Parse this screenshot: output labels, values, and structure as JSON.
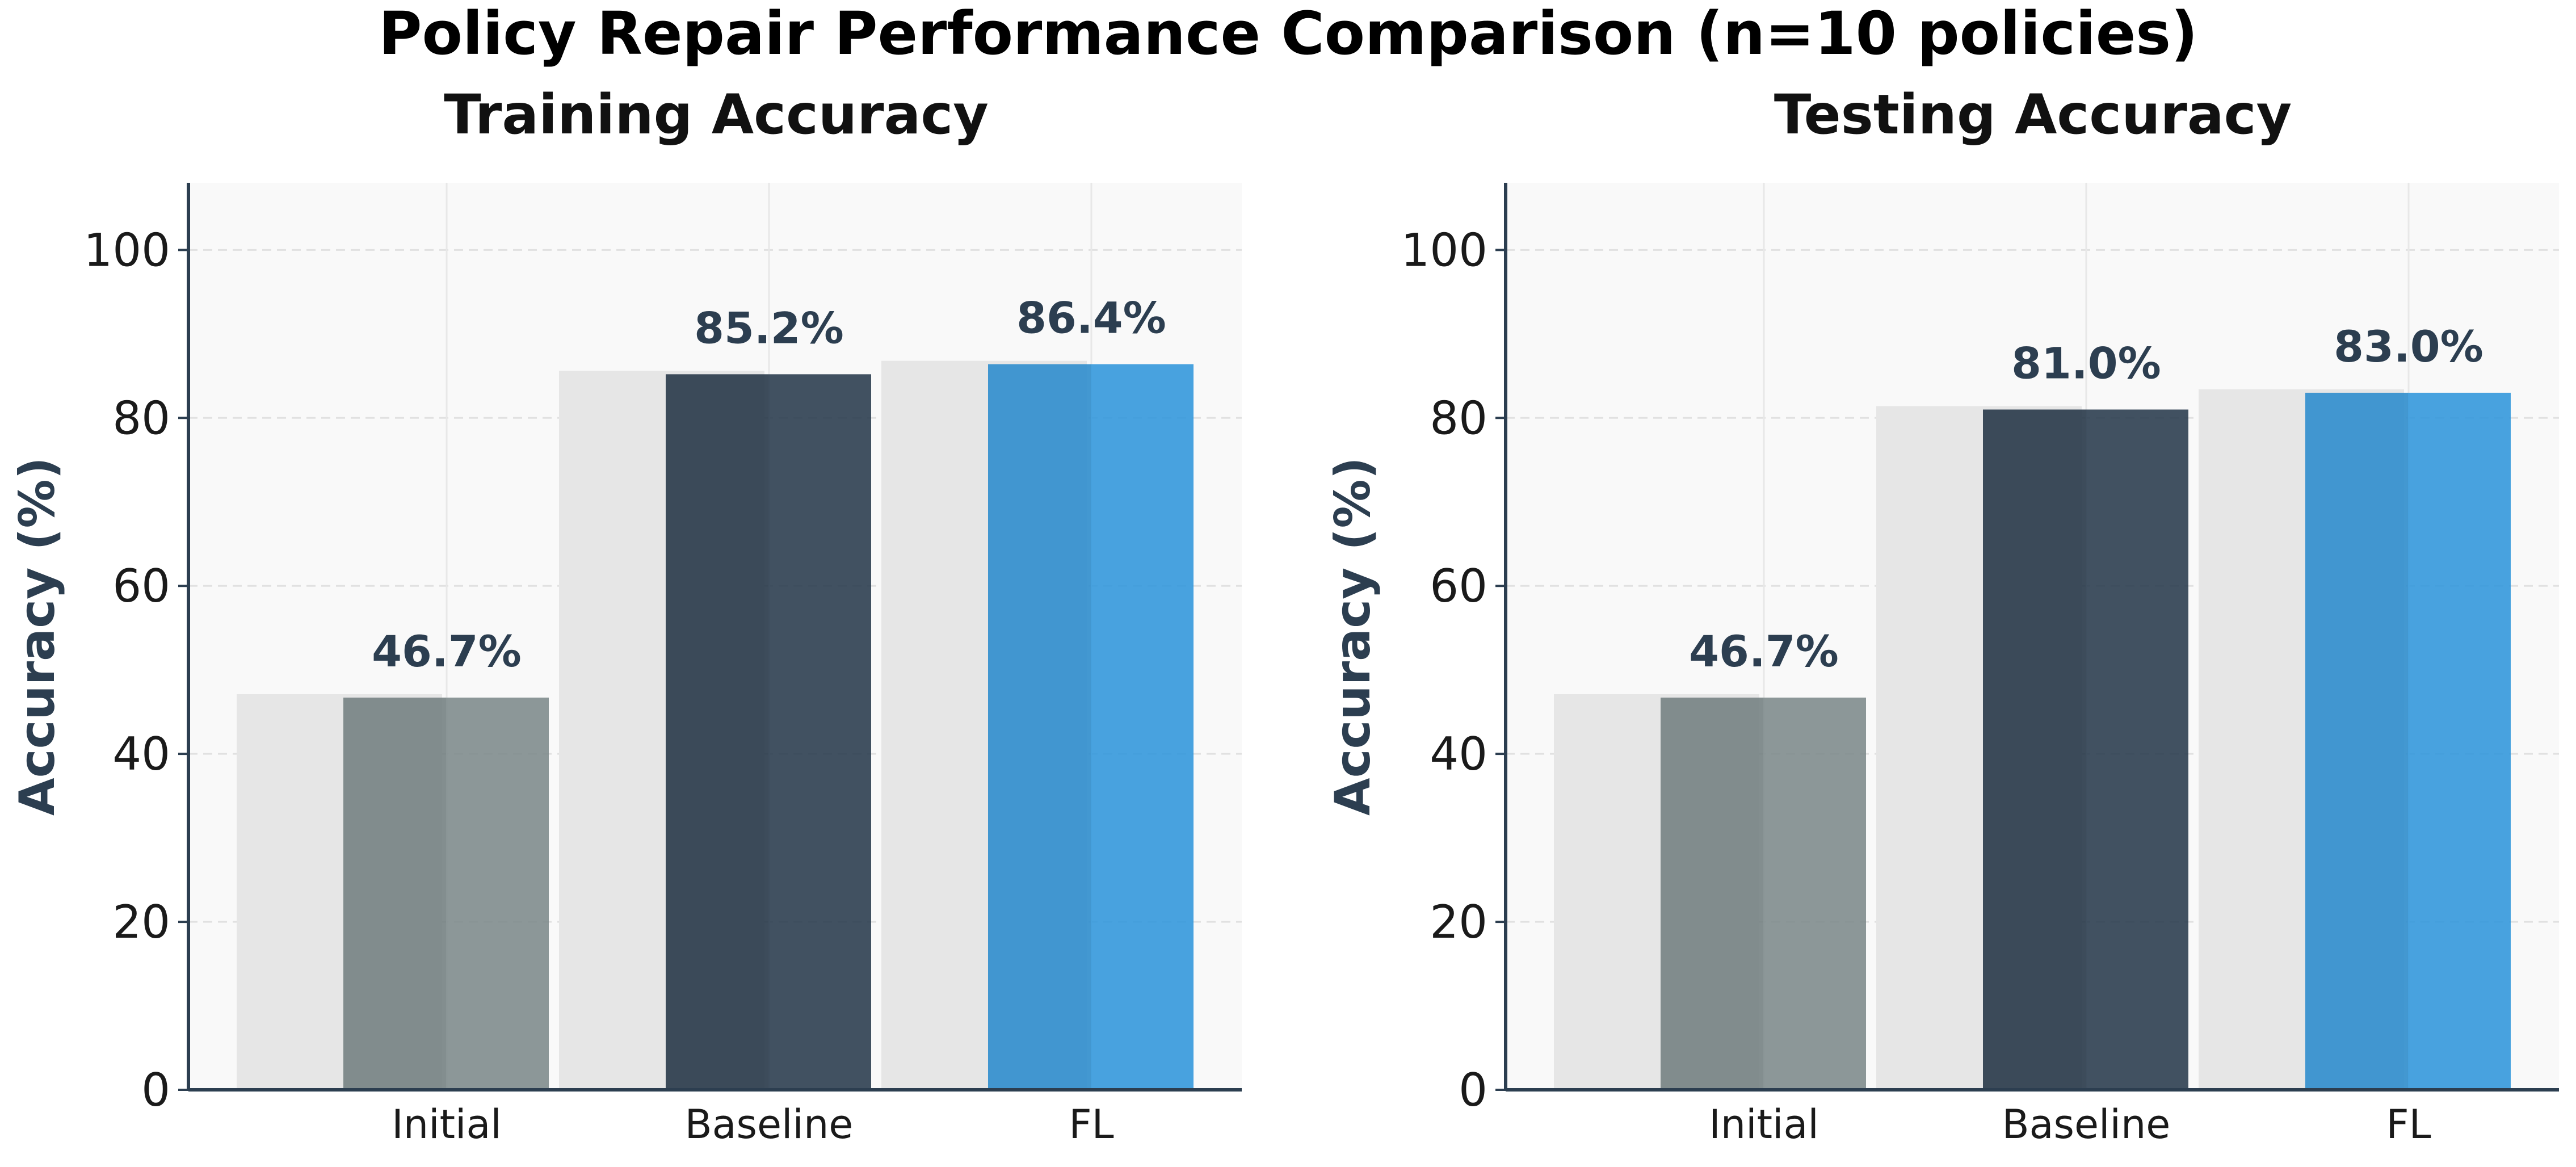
{
  "figure_title": "Policy Repair Performance Comparison (n=10 policies)",
  "colors": {
    "initial": "#7f8c8d",
    "baseline": "#2c3e50",
    "fl": "#3498db",
    "shadow_bar": "#e6e6e6",
    "plot_bg": "#f9f9f9",
    "label_text": "#2c3e50",
    "axis": "#2c3e50",
    "grid": "#dcdcdc"
  },
  "chart_data": [
    {
      "type": "bar",
      "title": "Training Accuracy",
      "ylabel": "Accuracy (%)",
      "xlabel": "",
      "ylim": [
        0,
        108
      ],
      "yticks": [
        "0",
        "20",
        "40",
        "60",
        "80",
        "100"
      ],
      "grid": true,
      "categories": [
        "Initial",
        "Baseline",
        "FL"
      ],
      "values": [
        46.7,
        85.2,
        86.4
      ],
      "value_labels": [
        "46.7%",
        "85.2%",
        "86.4%"
      ]
    },
    {
      "type": "bar",
      "title": "Testing Accuracy",
      "ylabel": "Accuracy (%)",
      "xlabel": "",
      "ylim": [
        0,
        108
      ],
      "yticks": [
        "0",
        "20",
        "40",
        "60",
        "80",
        "100"
      ],
      "grid": true,
      "categories": [
        "Initial",
        "Baseline",
        "FL"
      ],
      "values": [
        46.7,
        81.0,
        83.0
      ],
      "value_labels": [
        "46.7%",
        "81.0%",
        "83.0%"
      ]
    }
  ]
}
